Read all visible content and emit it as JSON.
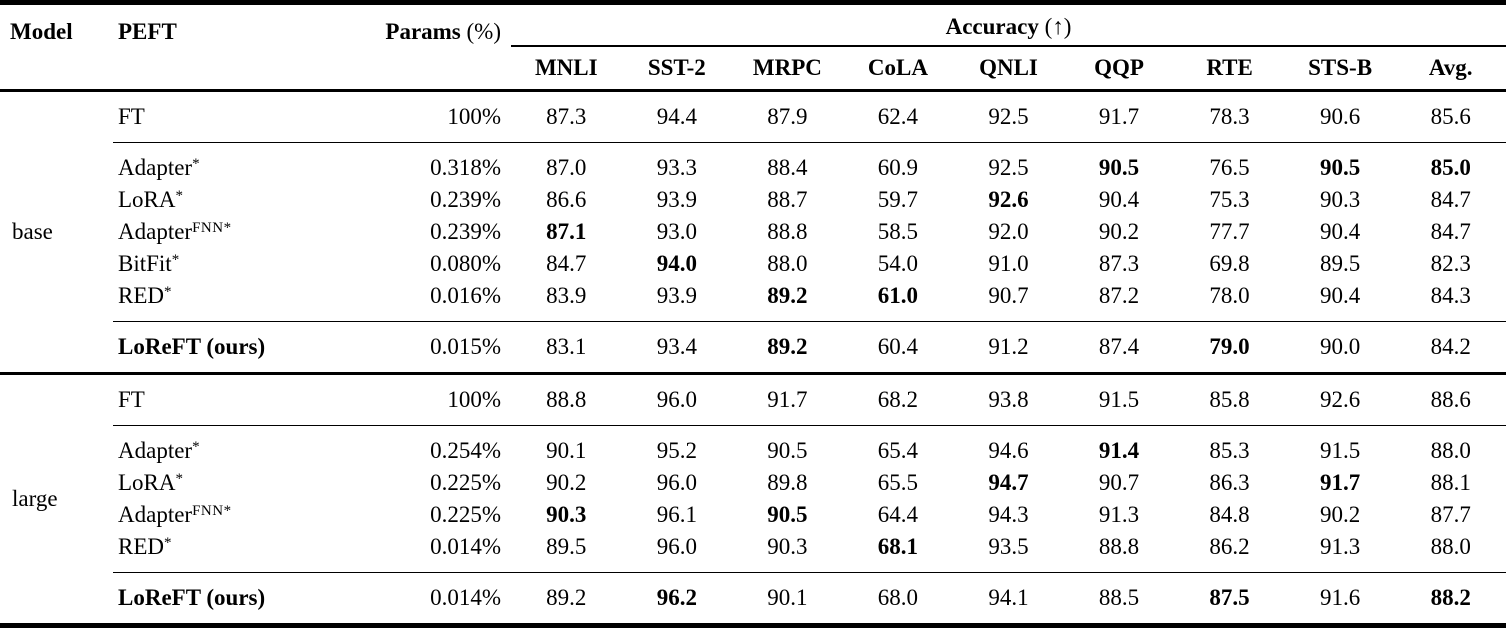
{
  "colors": {
    "text": "#000000",
    "background": "#ffffff",
    "rule": "#000000"
  },
  "table": {
    "header": {
      "model": "Model",
      "peft": "PEFT",
      "params": "Params",
      "params_unit": "(%)",
      "accuracy": "Accuracy",
      "accuracy_arrow": "(↑)",
      "metrics": [
        "MNLI",
        "SST-2",
        "MRPC",
        "CoLA",
        "QNLI",
        "QQP",
        "RTE",
        "STS-B",
        "Avg."
      ]
    },
    "groups": [
      {
        "model": "base",
        "rows": [
          {
            "peft": "FT",
            "sup": "",
            "params": "100%",
            "bold_name": false,
            "rule_after": true,
            "values": [
              "87.3",
              "94.4",
              "87.9",
              "62.4",
              "92.5",
              "91.7",
              "78.3",
              "90.6",
              "85.6"
            ],
            "bold_indices": []
          },
          {
            "peft": "Adapter",
            "sup": "*",
            "params": "0.318%",
            "bold_name": false,
            "rule_after": false,
            "values": [
              "87.0",
              "93.3",
              "88.4",
              "60.9",
              "92.5",
              "90.5",
              "76.5",
              "90.5",
              "85.0"
            ],
            "bold_indices": [
              5,
              7,
              8
            ]
          },
          {
            "peft": "LoRA",
            "sup": "*",
            "params": "0.239%",
            "bold_name": false,
            "rule_after": false,
            "values": [
              "86.6",
              "93.9",
              "88.7",
              "59.7",
              "92.6",
              "90.4",
              "75.3",
              "90.3",
              "84.7"
            ],
            "bold_indices": [
              4
            ]
          },
          {
            "peft": "Adapter",
            "sup": "FNN*",
            "params": "0.239%",
            "bold_name": false,
            "rule_after": false,
            "values": [
              "87.1",
              "93.0",
              "88.8",
              "58.5",
              "92.0",
              "90.2",
              "77.7",
              "90.4",
              "84.7"
            ],
            "bold_indices": [
              0
            ]
          },
          {
            "peft": "BitFit",
            "sup": "*",
            "params": "0.080%",
            "bold_name": false,
            "rule_after": false,
            "values": [
              "84.7",
              "94.0",
              "88.0",
              "54.0",
              "91.0",
              "87.3",
              "69.8",
              "89.5",
              "82.3"
            ],
            "bold_indices": [
              1
            ]
          },
          {
            "peft": "RED",
            "sup": "*",
            "params": "0.016%",
            "bold_name": false,
            "rule_after": true,
            "values": [
              "83.9",
              "93.9",
              "89.2",
              "61.0",
              "90.7",
              "87.2",
              "78.0",
              "90.4",
              "84.3"
            ],
            "bold_indices": [
              2,
              3
            ]
          },
          {
            "peft": "LoReFT (ours)",
            "sup": "",
            "params": "0.015%",
            "bold_name": true,
            "rule_after": false,
            "values": [
              "83.1",
              "93.4",
              "89.2",
              "60.4",
              "91.2",
              "87.4",
              "79.0",
              "90.0",
              "84.2"
            ],
            "bold_indices": [
              2,
              6
            ]
          }
        ]
      },
      {
        "model": "large",
        "rows": [
          {
            "peft": "FT",
            "sup": "",
            "params": "100%",
            "bold_name": false,
            "rule_after": true,
            "values": [
              "88.8",
              "96.0",
              "91.7",
              "68.2",
              "93.8",
              "91.5",
              "85.8",
              "92.6",
              "88.6"
            ],
            "bold_indices": []
          },
          {
            "peft": "Adapter",
            "sup": "*",
            "params": "0.254%",
            "bold_name": false,
            "rule_after": false,
            "values": [
              "90.1",
              "95.2",
              "90.5",
              "65.4",
              "94.6",
              "91.4",
              "85.3",
              "91.5",
              "88.0"
            ],
            "bold_indices": [
              5
            ]
          },
          {
            "peft": "LoRA",
            "sup": "*",
            "params": "0.225%",
            "bold_name": false,
            "rule_after": false,
            "values": [
              "90.2",
              "96.0",
              "89.8",
              "65.5",
              "94.7",
              "90.7",
              "86.3",
              "91.7",
              "88.1"
            ],
            "bold_indices": [
              4,
              7
            ]
          },
          {
            "peft": "Adapter",
            "sup": "FNN*",
            "params": "0.225%",
            "bold_name": false,
            "rule_after": false,
            "values": [
              "90.3",
              "96.1",
              "90.5",
              "64.4",
              "94.3",
              "91.3",
              "84.8",
              "90.2",
              "87.7"
            ],
            "bold_indices": [
              0,
              2
            ]
          },
          {
            "peft": "RED",
            "sup": "*",
            "params": "0.014%",
            "bold_name": false,
            "rule_after": true,
            "values": [
              "89.5",
              "96.0",
              "90.3",
              "68.1",
              "93.5",
              "88.8",
              "86.2",
              "91.3",
              "88.0"
            ],
            "bold_indices": [
              3
            ]
          },
          {
            "peft": "LoReFT (ours)",
            "sup": "",
            "params": "0.014%",
            "bold_name": true,
            "rule_after": false,
            "values": [
              "89.2",
              "96.2",
              "90.1",
              "68.0",
              "94.1",
              "88.5",
              "87.5",
              "91.6",
              "88.2"
            ],
            "bold_indices": [
              1,
              6,
              8
            ]
          }
        ]
      }
    ]
  }
}
